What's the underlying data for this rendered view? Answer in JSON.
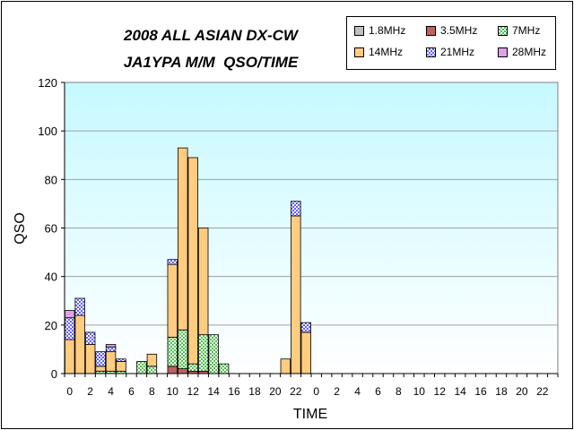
{
  "title_line1": "2008 ALL ASIAN DX-CW",
  "title_line2": "JA1YPA M/M  QSO/TIME",
  "colors": {
    "plot_top": "#c6f9ff",
    "plot_bottom": "#ffffff",
    "grid": "#a0a0a0",
    "edge": "#000000"
  },
  "chart_data": {
    "type": "bar",
    "stacked": true,
    "xlabel": "TIME",
    "ylabel": "QSO",
    "ylim": [
      0,
      120
    ],
    "yticks": [
      0,
      20,
      40,
      60,
      80,
      100,
      120
    ],
    "grid": true,
    "legend_position": "top-right",
    "categories": [
      "0",
      "1",
      "2",
      "3",
      "4",
      "5",
      "6",
      "7",
      "8",
      "9",
      "10",
      "11",
      "12",
      "13",
      "14",
      "15",
      "16",
      "17",
      "18",
      "19",
      "20",
      "21",
      "22",
      "23",
      "0",
      "1",
      "2",
      "3",
      "4",
      "5",
      "6",
      "7",
      "8",
      "9",
      "10",
      "11",
      "12",
      "13",
      "14",
      "15",
      "16",
      "17",
      "18",
      "19",
      "20",
      "21",
      "22",
      "23"
    ],
    "tick_labels": [
      "0",
      "2",
      "4",
      "6",
      "8",
      "10",
      "12",
      "14",
      "16",
      "18",
      "20",
      "22",
      "0",
      "2",
      "4",
      "6",
      "8",
      "10",
      "12",
      "14",
      "16",
      "18",
      "20",
      "22"
    ],
    "series": [
      {
        "name": "1.8MHz",
        "color": "#c0c0c0",
        "pattern": "solid",
        "values": [
          0,
          0,
          0,
          0,
          0,
          0,
          0,
          0,
          0,
          0,
          0,
          0,
          0,
          0,
          0,
          0,
          0,
          0,
          0,
          0,
          0,
          0,
          0,
          0,
          0,
          0,
          0,
          0,
          0,
          0,
          0,
          0,
          0,
          0,
          0,
          0,
          0,
          0,
          0,
          0,
          0,
          0,
          0,
          0,
          0,
          0,
          0,
          0
        ]
      },
      {
        "name": "3.5MHz",
        "color": "#c06060",
        "pattern": "solid",
        "values": [
          0,
          0,
          0,
          0,
          0,
          0,
          0,
          0,
          0,
          0,
          3,
          2,
          1,
          1,
          0,
          0,
          0,
          0,
          0,
          0,
          0,
          0,
          0,
          0,
          0,
          0,
          0,
          0,
          0,
          0,
          0,
          0,
          0,
          0,
          0,
          0,
          0,
          0,
          0,
          0,
          0,
          0,
          0,
          0,
          0,
          0,
          0,
          0
        ]
      },
      {
        "name": "7MHz",
        "color": "#5fd05f",
        "pattern": "dots",
        "values": [
          0,
          0,
          0,
          1,
          1,
          1,
          0,
          5,
          3,
          0,
          12,
          16,
          3,
          15,
          16,
          4,
          0,
          0,
          0,
          0,
          0,
          0,
          0,
          0,
          0,
          0,
          0,
          0,
          0,
          0,
          0,
          0,
          0,
          0,
          0,
          0,
          0,
          0,
          0,
          0,
          0,
          0,
          0,
          0,
          0,
          0,
          0,
          0
        ]
      },
      {
        "name": "14MHz",
        "color": "#ffcc80",
        "pattern": "solid",
        "values": [
          14,
          24,
          12,
          2,
          8,
          4,
          0,
          0,
          5,
          0,
          30,
          75,
          85,
          44,
          0,
          0,
          0,
          0,
          0,
          0,
          0,
          6,
          65,
          17,
          0,
          0,
          0,
          0,
          0,
          0,
          0,
          0,
          0,
          0,
          0,
          0,
          0,
          0,
          0,
          0,
          0,
          0,
          0,
          0,
          0,
          0,
          0,
          0
        ]
      },
      {
        "name": "21MHz",
        "color": "#8080ff",
        "pattern": "checker",
        "values": [
          9,
          7,
          5,
          6,
          2,
          1,
          0,
          0,
          0,
          0,
          2,
          0,
          0,
          0,
          0,
          0,
          0,
          0,
          0,
          0,
          0,
          0,
          6,
          4,
          0,
          0,
          0,
          0,
          0,
          0,
          0,
          0,
          0,
          0,
          0,
          0,
          0,
          0,
          0,
          0,
          0,
          0,
          0,
          0,
          0,
          0,
          0,
          0
        ]
      },
      {
        "name": "28MHz",
        "color": "#e0a0e8",
        "pattern": "solid",
        "values": [
          3,
          0,
          0,
          0,
          1,
          0,
          0,
          0,
          0,
          0,
          0,
          0,
          0,
          0,
          0,
          0,
          0,
          0,
          0,
          0,
          0,
          0,
          0,
          0,
          0,
          0,
          0,
          0,
          0,
          0,
          0,
          0,
          0,
          0,
          0,
          0,
          0,
          0,
          0,
          0,
          0,
          0,
          0,
          0,
          0,
          0,
          0,
          0
        ]
      }
    ]
  }
}
